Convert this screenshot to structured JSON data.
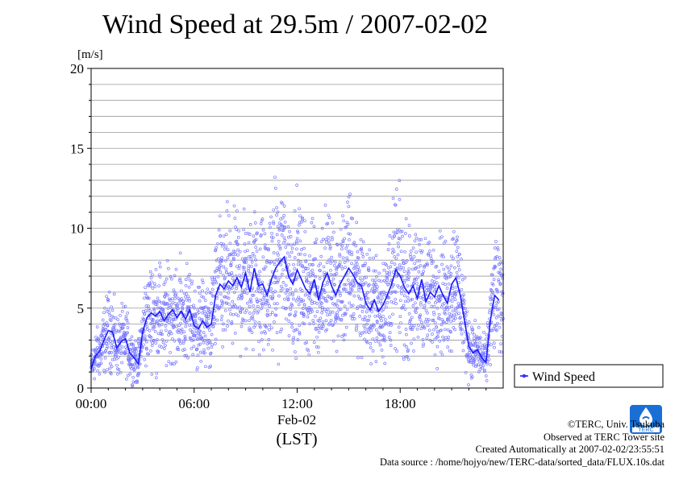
{
  "title": "Wind Speed at 29.5m / 2007-02-02",
  "chart_data": {
    "type": "scatter",
    "ylabel": "[m/s]",
    "ylim": [
      0,
      20
    ],
    "yticks": [
      0,
      5,
      10,
      15,
      20
    ],
    "x_unit": "hour",
    "xlim": [
      0,
      24
    ],
    "xticks": [
      {
        "h": 0,
        "label": "00:00"
      },
      {
        "h": 6,
        "label": "06:00"
      },
      {
        "h": 12,
        "label": "12:00"
      },
      {
        "h": 18,
        "label": "18:00"
      }
    ],
    "date_label": "Feb-02",
    "xunit_label": "(LST)",
    "grid": true,
    "legend_position": "right",
    "series": [
      {
        "name": "Wind Speed",
        "color": "#2222dd",
        "point_color": "#7777ff",
        "x": [
          0,
          0.25,
          0.5,
          0.75,
          1,
          1.25,
          1.5,
          1.75,
          2,
          2.25,
          2.5,
          2.75,
          3,
          3.25,
          3.5,
          3.75,
          4,
          4.25,
          4.5,
          4.75,
          5,
          5.25,
          5.5,
          5.75,
          6,
          6.25,
          6.5,
          6.75,
          7,
          7.25,
          7.5,
          7.75,
          8,
          8.25,
          8.5,
          8.75,
          9,
          9.25,
          9.5,
          9.75,
          10,
          10.25,
          10.5,
          10.75,
          11,
          11.25,
          11.5,
          11.75,
          12,
          12.25,
          12.5,
          12.75,
          13,
          13.25,
          13.5,
          13.75,
          14,
          14.25,
          14.5,
          14.75,
          15,
          15.25,
          15.5,
          15.75,
          16,
          16.25,
          16.5,
          16.75,
          17,
          17.25,
          17.5,
          17.75,
          18,
          18.25,
          18.5,
          18.75,
          19,
          19.25,
          19.5,
          19.75,
          20,
          20.25,
          20.5,
          20.75,
          21,
          21.25,
          21.5,
          21.75,
          22,
          22.25,
          22.5,
          22.75,
          23,
          23.25,
          23.5,
          23.75
        ],
        "values": [
          1.2,
          2,
          2.3,
          3,
          3.6,
          3.5,
          2.5,
          2.9,
          3.1,
          2.2,
          1.9,
          1.5,
          3.5,
          4.4,
          4.7,
          4.5,
          4.8,
          4.2,
          4.6,
          4.9,
          4.4,
          4.8,
          4.3,
          4.9,
          3.9,
          3.7,
          4.2,
          3.8,
          4,
          5.8,
          6.5,
          6.2,
          6.7,
          6.4,
          6.9,
          6.3,
          7.2,
          6,
          7.5,
          6.4,
          6.5,
          5.8,
          6.8,
          7.5,
          7.9,
          8.2,
          7,
          6.5,
          7.4,
          6.8,
          6.2,
          5.9,
          6.8,
          5.5,
          6.6,
          7.2,
          6.4,
          5.8,
          6.5,
          7,
          7.5,
          7.1,
          6.6,
          6.4,
          5.3,
          4.9,
          5.5,
          4.8,
          5.2,
          5.8,
          6.5,
          7.4,
          7,
          6.3,
          5.9,
          6.4,
          5.6,
          6.8,
          5.4,
          6,
          5.7,
          6.4,
          5.8,
          5.3,
          6.5,
          6.9,
          5.8,
          4.2,
          2.6,
          2.2,
          2.4,
          1.9,
          1.6,
          4.2,
          5.8,
          5.5
        ]
      }
    ]
  },
  "credits": {
    "line1": "©TERC, Univ. Tsukuba",
    "line2": "Observed at TERC Tower site",
    "line3": "Created Automatically at 2007-02-02/23:55:51",
    "line4": "Data source : /home/hojyo/new/TERC-data/sorted_data/FLUX.10s.dat"
  },
  "logo_text": "TERC"
}
